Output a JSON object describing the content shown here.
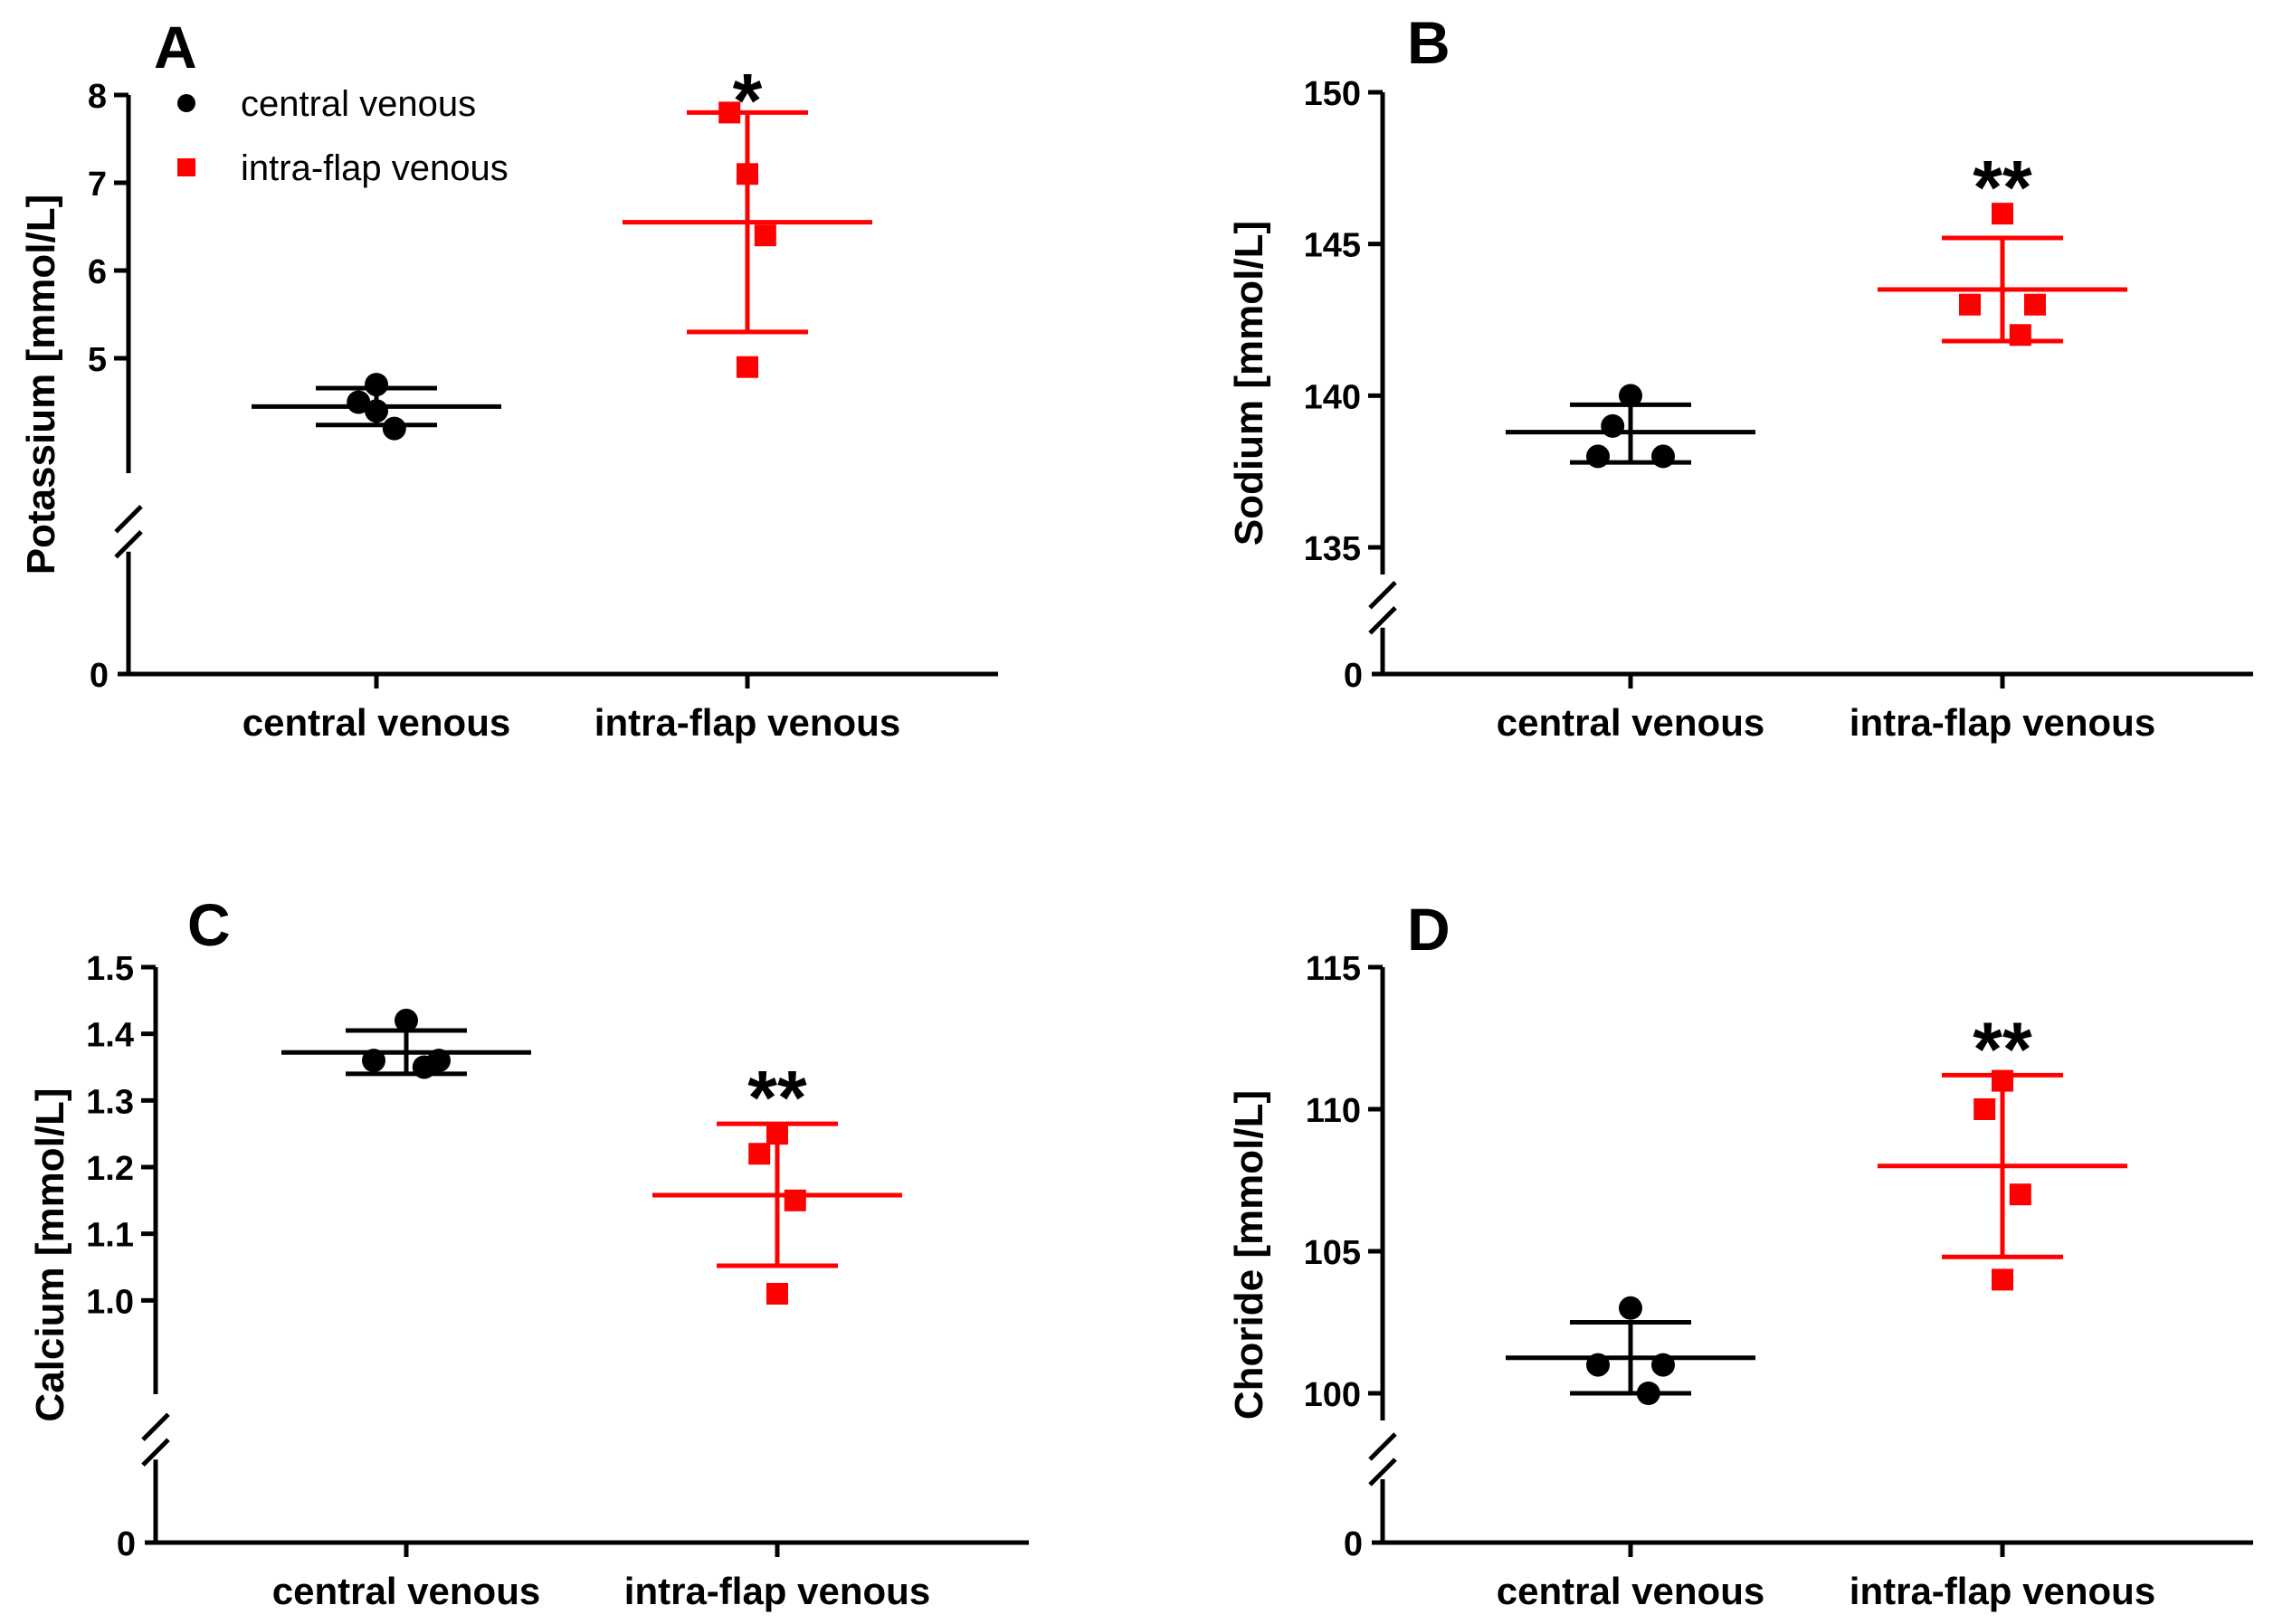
{
  "legend": {
    "items": [
      {
        "label": "central venous",
        "color": "#000000",
        "marker": "circle"
      },
      {
        "label": "intra-flap venous",
        "color": "#ff0000",
        "marker": "square"
      }
    ]
  },
  "chart_data": [
    {
      "panel": "A",
      "type": "scatter",
      "ylabel": "Potassium [mmol/L]",
      "categories": [
        "central venous",
        "intra-flap venous"
      ],
      "ylim": [
        4.0,
        8.0
      ],
      "yticks": [
        5,
        6,
        7,
        8
      ],
      "yzero_label": "0",
      "axis_break": true,
      "series": [
        {
          "name": "central venous",
          "color": "#000000",
          "marker": "circle",
          "values": [
            4.5,
            4.7,
            4.2,
            4.4
          ],
          "mean": 4.45,
          "sd_low": 4.24,
          "sd_high": 4.66
        },
        {
          "name": "intra-flap venous",
          "color": "#ff0000",
          "marker": "square",
          "values": [
            7.8,
            7.1,
            6.4,
            4.9
          ],
          "mean": 6.55,
          "sd_low": 5.3,
          "sd_high": 7.8
        }
      ],
      "annotation": {
        "text": "*",
        "category": "intra-flap venous"
      }
    },
    {
      "panel": "B",
      "type": "scatter",
      "ylabel": "Sodium [mmol/L]",
      "categories": [
        "central venous",
        "intra-flap venous"
      ],
      "ylim": [
        135,
        150
      ],
      "yticks": [
        135,
        140,
        145,
        150
      ],
      "yzero_label": "0",
      "axis_break": true,
      "series": [
        {
          "name": "central venous",
          "color": "#000000",
          "marker": "circle",
          "values": [
            139,
            140,
            138,
            138
          ],
          "mean": 138.8,
          "sd_low": 137.8,
          "sd_high": 139.7
        },
        {
          "name": "intra-flap venous",
          "color": "#ff0000",
          "marker": "square",
          "values": [
            143,
            146,
            142,
            143
          ],
          "mean": 143.5,
          "sd_low": 141.8,
          "sd_high": 145.2
        }
      ],
      "annotation": {
        "text": "**",
        "category": "intra-flap venous"
      }
    },
    {
      "panel": "C",
      "type": "scatter",
      "ylabel": "Calcium [mmol/L]",
      "categories": [
        "central venous",
        "intra-flap venous"
      ],
      "ylim": [
        0.9,
        1.5
      ],
      "yticks": [
        1.0,
        1.1,
        1.2,
        1.3,
        1.4,
        1.5
      ],
      "ytick_labels": [
        "1.0",
        "1.1",
        "1.2",
        "1.3",
        "1.4",
        "1.5"
      ],
      "yzero_label": "0",
      "axis_break": true,
      "series": [
        {
          "name": "central venous",
          "color": "#000000",
          "marker": "circle",
          "values": [
            1.36,
            1.42,
            1.35,
            1.36
          ],
          "mean": 1.372,
          "sd_low": 1.34,
          "sd_high": 1.405
        },
        {
          "name": "intra-flap venous",
          "color": "#ff0000",
          "marker": "square",
          "values": [
            1.22,
            1.25,
            1.15,
            1.01
          ],
          "mean": 1.158,
          "sd_low": 1.052,
          "sd_high": 1.265
        }
      ],
      "annotation": {
        "text": "**",
        "category": "intra-flap venous"
      }
    },
    {
      "panel": "D",
      "type": "scatter",
      "ylabel": "Choride [mmol/L]",
      "categories": [
        "central venous",
        "intra-flap venous"
      ],
      "ylim": [
        100,
        115
      ],
      "yticks": [
        100,
        105,
        110,
        115
      ],
      "yzero_label": "0",
      "axis_break": true,
      "series": [
        {
          "name": "central venous",
          "color": "#000000",
          "marker": "circle",
          "values": [
            101,
            103,
            100,
            101
          ],
          "mean": 101.25,
          "sd_low": 100.0,
          "sd_high": 102.5
        },
        {
          "name": "intra-flap venous",
          "color": "#ff0000",
          "marker": "square",
          "values": [
            110,
            111,
            107,
            104
          ],
          "mean": 108.0,
          "sd_low": 104.8,
          "sd_high": 111.2
        }
      ],
      "annotation": {
        "text": "**",
        "category": "intra-flap venous"
      }
    }
  ]
}
